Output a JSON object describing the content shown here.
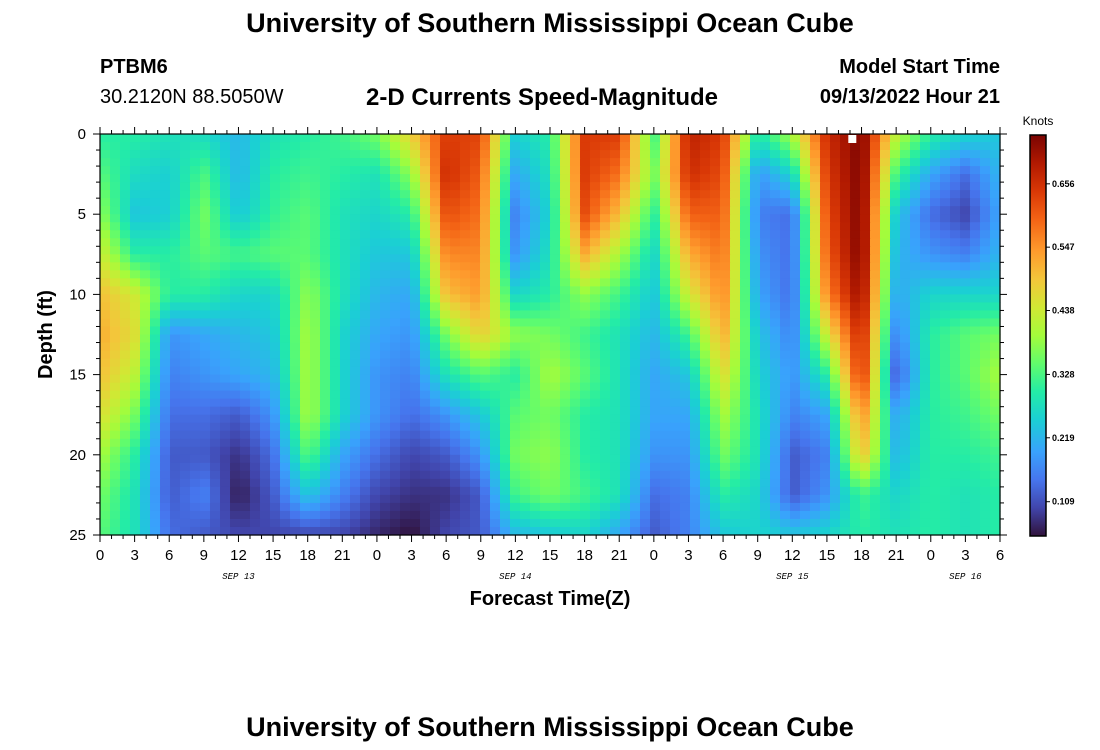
{
  "header": {
    "title": "University of Southern Mississippi Ocean Cube",
    "station": "PTBM6",
    "coordinates": "30.2120N  88.5050W",
    "subtitle": "2-D Currents Speed-Magnitude",
    "model_start_label": "Model Start Time",
    "model_start_value": "09/13/2022 Hour 21"
  },
  "footer": {
    "title": "University of Southern Mississippi Ocean Cube"
  },
  "chart_data": {
    "type": "heatmap",
    "title": "2-D Currents Speed-Magnitude",
    "xlabel": "Forecast Time(Z)",
    "ylabel": "Depth (ft)",
    "x_range_hours": [
      0,
      78
    ],
    "x_ticks": [
      "0",
      "3",
      "6",
      "9",
      "12",
      "15",
      "18",
      "21",
      "0",
      "3",
      "6",
      "9",
      "12",
      "15",
      "18",
      "21",
      "0",
      "3",
      "6",
      "9",
      "12",
      "15",
      "18",
      "21",
      "0",
      "3",
      "6"
    ],
    "date_labels": [
      {
        "label": "SEP 13",
        "hour": 12
      },
      {
        "label": "SEP 14",
        "hour": 36
      },
      {
        "label": "SEP 15",
        "hour": 60
      },
      {
        "label": "SEP 16",
        "hour": 75
      }
    ],
    "y_range_ft": [
      0,
      25
    ],
    "y_ticks": [
      "0",
      "5",
      "10",
      "15",
      "20",
      "25"
    ],
    "y_tick_values": [
      0,
      5,
      10,
      15,
      20,
      25
    ],
    "colorbar": {
      "unit": "Knots",
      "min": 0.05,
      "max": 0.74,
      "labels": [
        "0.656",
        "0.547",
        "0.438",
        "0.328",
        "0.219",
        "0.109"
      ],
      "values": [
        0.656,
        0.547,
        0.438,
        0.328,
        0.219,
        0.109
      ]
    },
    "depths": [
      0,
      2.5,
      5,
      7.5,
      10,
      12.5,
      15,
      17.5,
      20,
      22.5,
      25
    ],
    "times": [
      0,
      3,
      6,
      9,
      12,
      15,
      18,
      21,
      24,
      27,
      30,
      33,
      36,
      39,
      42,
      45,
      48,
      51,
      54,
      57,
      60,
      63,
      66,
      69,
      72,
      75,
      78
    ],
    "speed": [
      [
        0.3,
        0.3,
        0.28,
        0.27,
        0.22,
        0.28,
        0.3,
        0.32,
        0.36,
        0.48,
        0.64,
        0.63,
        0.25,
        0.3,
        0.64,
        0.64,
        0.32,
        0.68,
        0.64,
        0.28,
        0.4,
        0.66,
        0.74,
        0.42,
        0.3,
        0.26,
        0.24
      ],
      [
        0.34,
        0.27,
        0.25,
        0.33,
        0.22,
        0.3,
        0.32,
        0.3,
        0.28,
        0.38,
        0.66,
        0.6,
        0.2,
        0.28,
        0.64,
        0.58,
        0.36,
        0.66,
        0.62,
        0.18,
        0.26,
        0.64,
        0.74,
        0.32,
        0.2,
        0.14,
        0.22
      ],
      [
        0.38,
        0.24,
        0.25,
        0.36,
        0.24,
        0.31,
        0.34,
        0.28,
        0.26,
        0.3,
        0.62,
        0.58,
        0.16,
        0.26,
        0.62,
        0.5,
        0.3,
        0.6,
        0.6,
        0.16,
        0.14,
        0.62,
        0.74,
        0.24,
        0.14,
        0.1,
        0.2
      ],
      [
        0.44,
        0.3,
        0.3,
        0.34,
        0.32,
        0.34,
        0.34,
        0.28,
        0.24,
        0.24,
        0.56,
        0.56,
        0.18,
        0.28,
        0.52,
        0.4,
        0.26,
        0.52,
        0.58,
        0.18,
        0.14,
        0.6,
        0.74,
        0.22,
        0.18,
        0.16,
        0.22
      ],
      [
        0.5,
        0.44,
        0.3,
        0.3,
        0.26,
        0.26,
        0.38,
        0.28,
        0.22,
        0.2,
        0.5,
        0.54,
        0.26,
        0.3,
        0.38,
        0.32,
        0.24,
        0.44,
        0.56,
        0.2,
        0.14,
        0.56,
        0.72,
        0.2,
        0.26,
        0.26,
        0.26
      ],
      [
        0.52,
        0.46,
        0.18,
        0.2,
        0.22,
        0.24,
        0.4,
        0.26,
        0.2,
        0.18,
        0.36,
        0.48,
        0.38,
        0.36,
        0.32,
        0.28,
        0.22,
        0.32,
        0.52,
        0.24,
        0.16,
        0.44,
        0.68,
        0.16,
        0.3,
        0.34,
        0.36
      ],
      [
        0.5,
        0.42,
        0.16,
        0.18,
        0.2,
        0.22,
        0.4,
        0.26,
        0.18,
        0.16,
        0.28,
        0.34,
        0.3,
        0.4,
        0.34,
        0.28,
        0.2,
        0.24,
        0.46,
        0.26,
        0.18,
        0.3,
        0.66,
        0.12,
        0.3,
        0.34,
        0.4
      ],
      [
        0.46,
        0.36,
        0.14,
        0.14,
        0.12,
        0.18,
        0.4,
        0.26,
        0.18,
        0.14,
        0.18,
        0.24,
        0.34,
        0.36,
        0.3,
        0.28,
        0.2,
        0.2,
        0.4,
        0.28,
        0.16,
        0.2,
        0.56,
        0.2,
        0.3,
        0.32,
        0.36
      ],
      [
        0.4,
        0.3,
        0.12,
        0.12,
        0.08,
        0.14,
        0.34,
        0.2,
        0.14,
        0.1,
        0.12,
        0.18,
        0.36,
        0.38,
        0.3,
        0.28,
        0.18,
        0.18,
        0.36,
        0.28,
        0.12,
        0.16,
        0.5,
        0.22,
        0.3,
        0.3,
        0.32
      ],
      [
        0.36,
        0.28,
        0.12,
        0.16,
        0.06,
        0.12,
        0.24,
        0.16,
        0.1,
        0.08,
        0.08,
        0.12,
        0.32,
        0.36,
        0.32,
        0.28,
        0.14,
        0.16,
        0.3,
        0.26,
        0.12,
        0.18,
        0.32,
        0.26,
        0.3,
        0.28,
        0.3
      ],
      [
        0.34,
        0.28,
        0.14,
        0.12,
        0.1,
        0.1,
        0.1,
        0.1,
        0.07,
        0.05,
        0.1,
        0.12,
        0.22,
        0.24,
        0.26,
        0.2,
        0.12,
        0.16,
        0.24,
        0.26,
        0.24,
        0.26,
        0.3,
        0.28,
        0.3,
        0.28,
        0.3
      ]
    ]
  }
}
